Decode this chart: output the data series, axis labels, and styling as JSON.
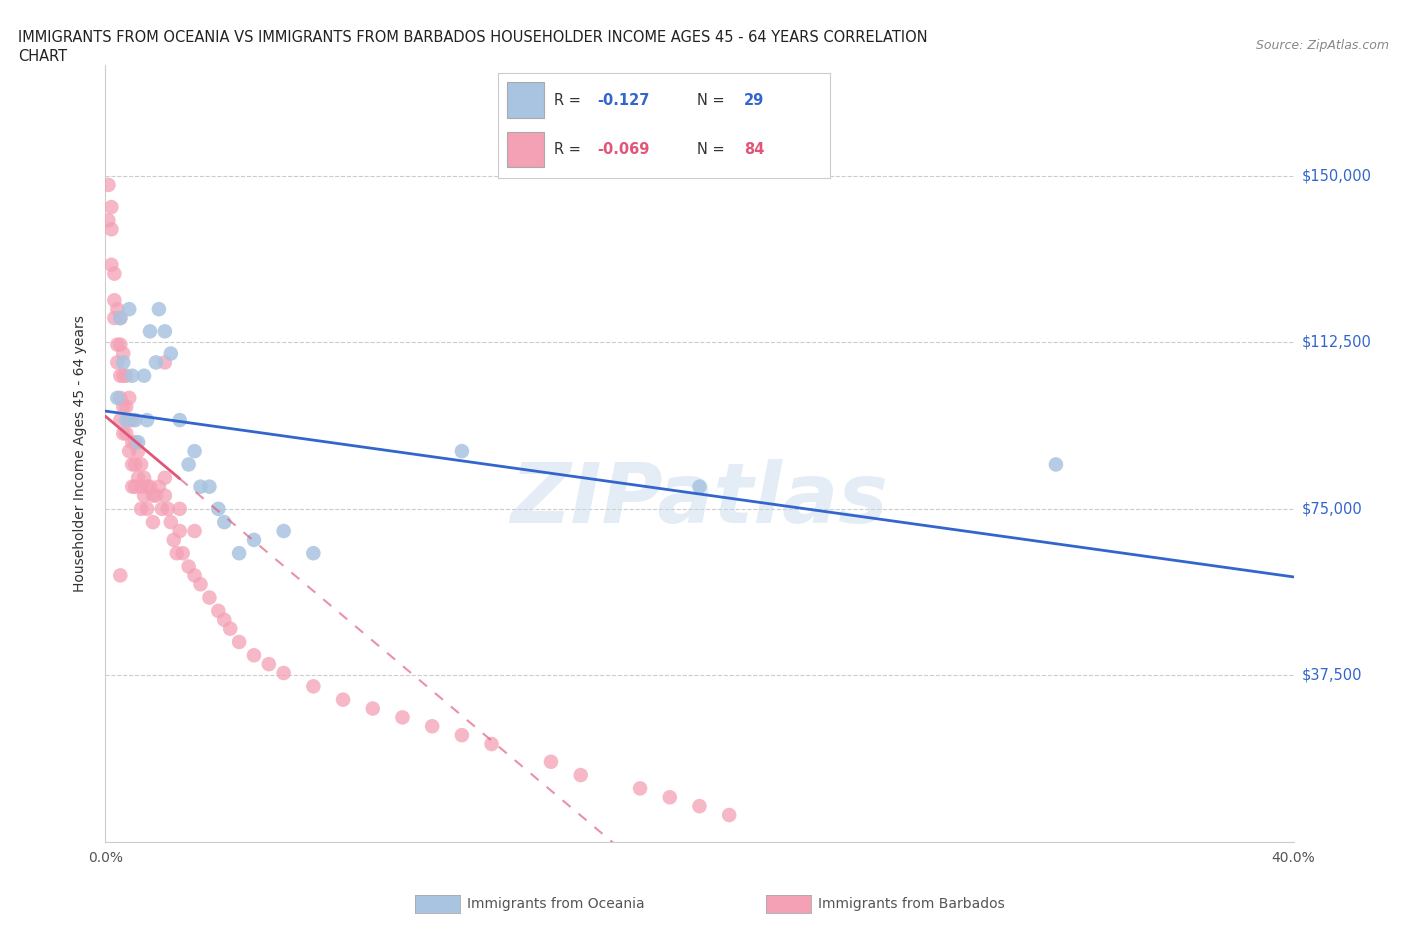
{
  "title_line1": "IMMIGRANTS FROM OCEANIA VS IMMIGRANTS FROM BARBADOS HOUSEHOLDER INCOME AGES 45 - 64 YEARS CORRELATION",
  "title_line2": "CHART",
  "source_text": "Source: ZipAtlas.com",
  "ylabel": "Householder Income Ages 45 - 64 years",
  "oceania_color": "#a8c4e0",
  "barbados_color": "#f4a0b5",
  "oceania_line_color": "#3366cc",
  "barbados_line_color": "#e05578",
  "oceania_R": -0.127,
  "oceania_N": 29,
  "barbados_R": -0.069,
  "barbados_N": 84,
  "xlim": [
    0.0,
    0.4
  ],
  "ylim": [
    0,
    175000
  ],
  "ytick_vals": [
    0,
    37500,
    75000,
    112500,
    150000
  ],
  "ytick_labels": [
    "",
    "$37,500",
    "$75,000",
    "$112,500",
    "$150,000"
  ],
  "watermark": "ZIPatlas",
  "oceania_x": [
    0.004,
    0.005,
    0.006,
    0.007,
    0.008,
    0.009,
    0.01,
    0.011,
    0.013,
    0.014,
    0.015,
    0.017,
    0.018,
    0.02,
    0.022,
    0.025,
    0.028,
    0.03,
    0.032,
    0.035,
    0.038,
    0.04,
    0.045,
    0.05,
    0.06,
    0.07,
    0.12,
    0.2,
    0.32
  ],
  "oceania_y": [
    100000,
    118000,
    108000,
    95000,
    120000,
    105000,
    95000,
    90000,
    105000,
    95000,
    115000,
    108000,
    120000,
    115000,
    110000,
    95000,
    85000,
    88000,
    80000,
    80000,
    75000,
    72000,
    65000,
    68000,
    70000,
    65000,
    88000,
    80000,
    85000
  ],
  "barbados_x": [
    0.001,
    0.001,
    0.002,
    0.002,
    0.002,
    0.003,
    0.003,
    0.003,
    0.004,
    0.004,
    0.004,
    0.005,
    0.005,
    0.005,
    0.005,
    0.005,
    0.006,
    0.006,
    0.006,
    0.006,
    0.007,
    0.007,
    0.007,
    0.008,
    0.008,
    0.008,
    0.009,
    0.009,
    0.009,
    0.009,
    0.01,
    0.01,
    0.01,
    0.011,
    0.011,
    0.012,
    0.012,
    0.012,
    0.013,
    0.013,
    0.014,
    0.014,
    0.015,
    0.016,
    0.016,
    0.017,
    0.018,
    0.019,
    0.02,
    0.02,
    0.021,
    0.022,
    0.023,
    0.024,
    0.025,
    0.026,
    0.028,
    0.03,
    0.032,
    0.035,
    0.038,
    0.04,
    0.042,
    0.045,
    0.05,
    0.055,
    0.06,
    0.07,
    0.08,
    0.09,
    0.1,
    0.11,
    0.12,
    0.13,
    0.15,
    0.16,
    0.18,
    0.19,
    0.2,
    0.21,
    0.005,
    0.02,
    0.025,
    0.03
  ],
  "barbados_y": [
    148000,
    140000,
    143000,
    138000,
    130000,
    128000,
    122000,
    118000,
    120000,
    112000,
    108000,
    118000,
    112000,
    105000,
    100000,
    95000,
    110000,
    105000,
    98000,
    92000,
    105000,
    98000,
    92000,
    100000,
    95000,
    88000,
    95000,
    90000,
    85000,
    80000,
    90000,
    85000,
    80000,
    88000,
    82000,
    85000,
    80000,
    75000,
    82000,
    78000,
    80000,
    75000,
    80000,
    78000,
    72000,
    78000,
    80000,
    75000,
    82000,
    78000,
    75000,
    72000,
    68000,
    65000,
    70000,
    65000,
    62000,
    60000,
    58000,
    55000,
    52000,
    50000,
    48000,
    45000,
    42000,
    40000,
    38000,
    35000,
    32000,
    30000,
    28000,
    26000,
    24000,
    22000,
    18000,
    15000,
    12000,
    10000,
    8000,
    6000,
    60000,
    108000,
    75000,
    70000
  ]
}
